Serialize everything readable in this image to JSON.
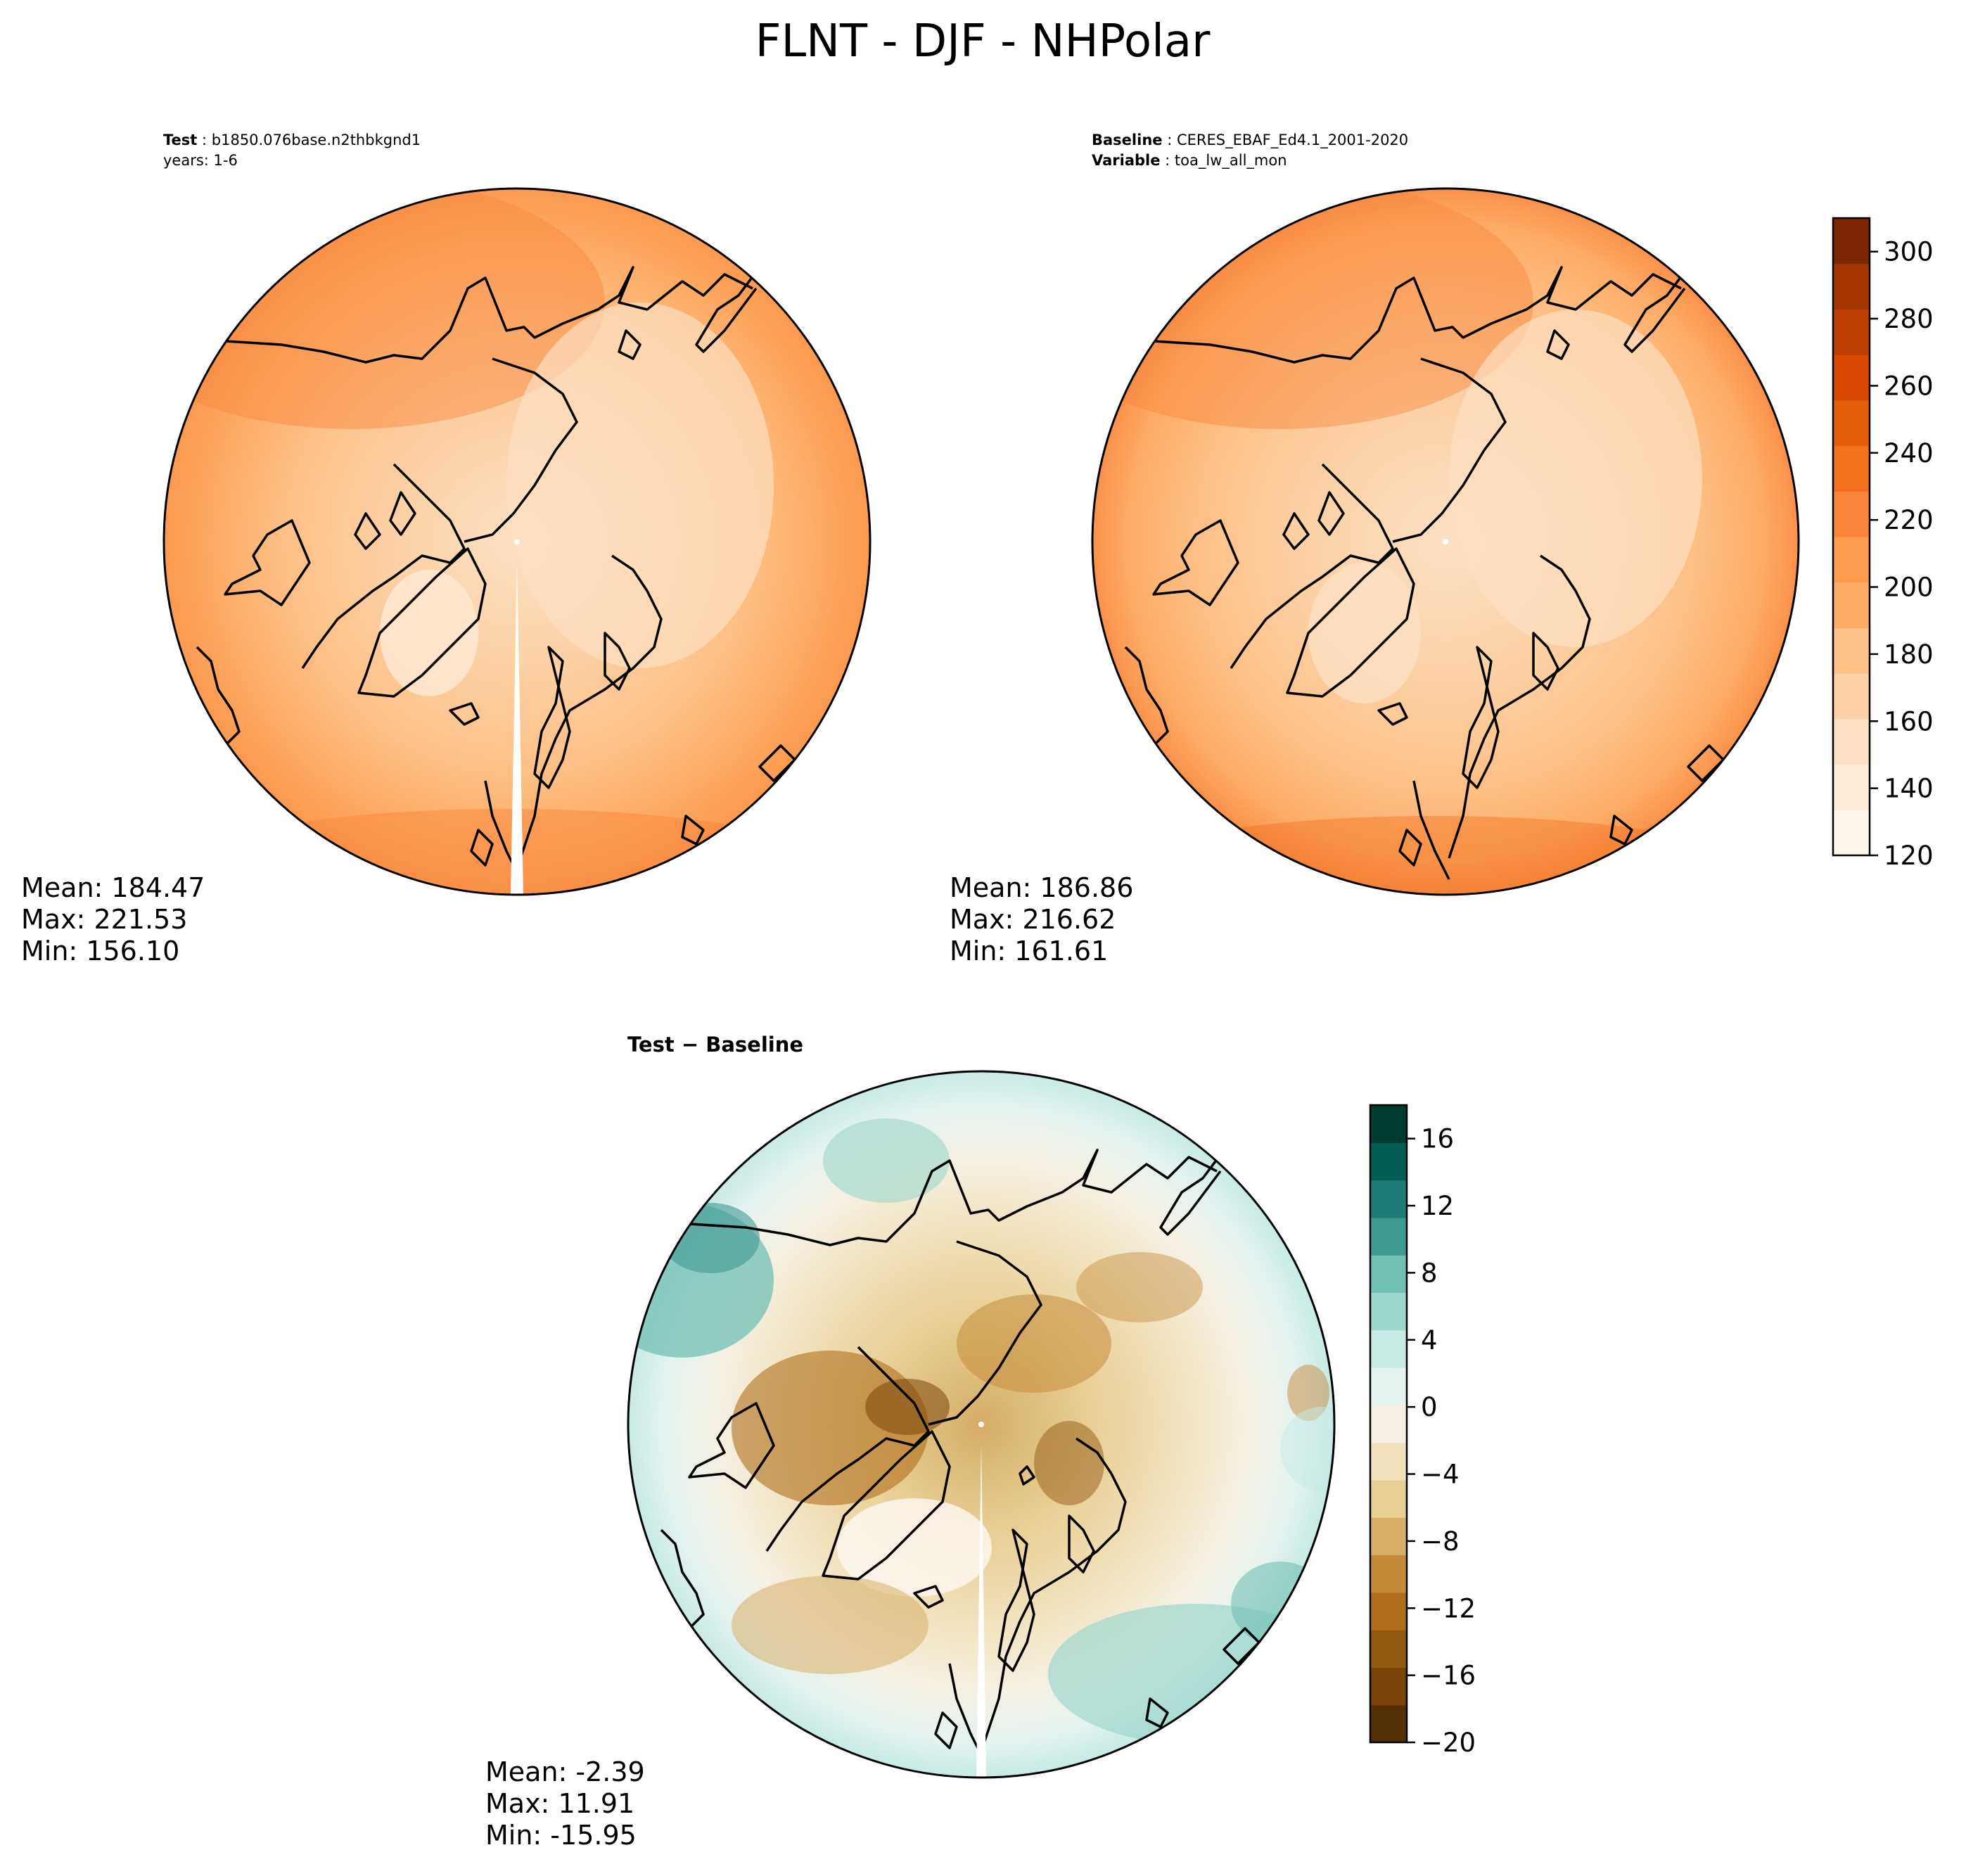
{
  "figure": {
    "title": "FLNT - DJF - NHPolar"
  },
  "colors": {
    "seq_levels": [
      "#fff5eb",
      "#feead6",
      "#fde0c2",
      "#fdd1a5",
      "#fdc086",
      "#fdac67",
      "#fd9b4f",
      "#f9853b",
      "#f2701e",
      "#e65d0e",
      "#d94801",
      "#be3f03",
      "#a63603",
      "#7f2704"
    ],
    "div_levels": [
      "#543005",
      "#7b4509",
      "#945a11",
      "#b06e1c",
      "#c58a39",
      "#d6ae67",
      "#e7ce93",
      "#f1e2bb",
      "#f5f0e3",
      "#e5f3f0",
      "#c7eae5",
      "#9cd7cc",
      "#71c0b4",
      "#3f9a92",
      "#1c7b74",
      "#035d55",
      "#003c30"
    ],
    "coastline": "#000000"
  },
  "panels": [
    {
      "id": "test",
      "header_lines": [
        {
          "key": "Test",
          "value": "b1850.076base.n2thbkgnd1"
        },
        {
          "key": "",
          "value": "years: 1-6"
        }
      ],
      "stats": {
        "mean": "Mean: 184.47",
        "max": "Max: 221.53",
        "min": "Min: 156.10"
      }
    },
    {
      "id": "baseline",
      "header_lines": [
        {
          "key": "Baseline",
          "value": "CERES_EBAF_Ed4.1_2001-2020"
        },
        {
          "key": "Variable",
          "value": "toa_lw_all_mon"
        }
      ],
      "stats": {
        "mean": "Mean: 186.86",
        "max": "Max: 216.62",
        "min": "Min: 161.61"
      }
    },
    {
      "id": "diff",
      "header_lines": [
        {
          "key": "Test − Baseline",
          "value": ""
        }
      ],
      "stats": {
        "mean": "Mean: -2.39",
        "max": "Max: 11.91",
        "min": "Min: -15.95"
      }
    }
  ],
  "chart_data": [
    {
      "type": "heatmap",
      "projection": "north-polar-stereographic",
      "title": "Test: b1850.076base.n2thbkgnd1, years: 1-6",
      "field": "FLNT",
      "value_range": [
        156.1,
        221.53
      ],
      "mean": 184.47,
      "colorbar": {
        "shared_with": "baseline"
      }
    },
    {
      "type": "heatmap",
      "projection": "north-polar-stereographic",
      "title": "Baseline: CERES_EBAF_Ed4.1_2001-2020, Variable: toa_lw_all_mon",
      "field": "FLNT",
      "value_range": [
        161.61,
        216.62
      ],
      "mean": 186.86,
      "colorbar": {
        "min": 120,
        "max": 310,
        "tick_values": [
          120,
          140,
          160,
          180,
          200,
          220,
          240,
          260,
          280,
          300
        ],
        "tick_labels": [
          "120",
          "140",
          "160",
          "180",
          "200",
          "220",
          "240",
          "260",
          "280",
          "300"
        ]
      }
    },
    {
      "type": "heatmap",
      "projection": "north-polar-stereographic",
      "title": "Test − Baseline",
      "field": "FLNT difference",
      "value_range": [
        -15.95,
        11.91
      ],
      "mean": -2.39,
      "colorbar": {
        "min": -20,
        "max": 18,
        "tick_values": [
          -20,
          -16,
          -12,
          -8,
          -4,
          0,
          4,
          8,
          12,
          16
        ],
        "tick_labels": [
          "−20",
          "−16",
          "−12",
          "−8",
          "−4",
          "0",
          "4",
          "8",
          "12",
          "16"
        ]
      }
    }
  ]
}
